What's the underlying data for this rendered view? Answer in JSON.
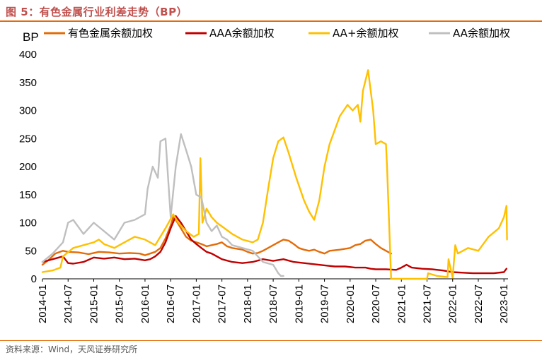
{
  "title": "图 5：有色金属行业利差走势（BP）",
  "source": "资料来源：Wind，天风证券研究所",
  "chart_data": {
    "type": "line",
    "title": "有色金属行业利差走势（BP）",
    "unit": "BP",
    "ylim": [
      0,
      400
    ],
    "yticks": [
      0,
      50,
      100,
      150,
      200,
      250,
      300,
      350,
      400
    ],
    "xlim": [
      2014.0,
      2023.08
    ],
    "xticks": [
      "2014-01",
      "2014-07",
      "2015-01",
      "2015-07",
      "2016-01",
      "2016-07",
      "2017-01",
      "2017-07",
      "2018-01",
      "2018-07",
      "2019-01",
      "2019-07",
      "2020-01",
      "2020-07",
      "2021-01",
      "2021-07",
      "2022-01",
      "2022-07",
      "2023-01"
    ],
    "legend_position": "top",
    "series": [
      {
        "name": "有色金属余额加权",
        "color": "#e36c09",
        "x": [
          2014.0,
          2014.1,
          2014.25,
          2014.4,
          2014.5,
          2014.7,
          2014.9,
          2015.1,
          2015.3,
          2015.5,
          2015.7,
          2015.9,
          2016.0,
          2016.1,
          2016.2,
          2016.3,
          2016.4,
          2016.5,
          2016.55,
          2016.6,
          2016.7,
          2016.8,
          2016.9,
          2017.0,
          2017.1,
          2017.2,
          2017.3,
          2017.4,
          2017.5,
          2017.6,
          2017.7,
          2017.9,
          2018.0,
          2018.1,
          2018.2,
          2018.3,
          2018.4,
          2018.5,
          2018.6,
          2018.7,
          2018.8,
          2018.9,
          2019.0,
          2019.1,
          2019.2,
          2019.3,
          2019.4,
          2019.5,
          2019.6,
          2019.8,
          2020.0,
          2020.1,
          2020.2,
          2020.3,
          2020.4,
          2020.5,
          2020.6,
          2020.7,
          2020.8
        ],
        "y": [
          25,
          32,
          45,
          50,
          48,
          47,
          44,
          48,
          47,
          45,
          46,
          45,
          42,
          45,
          48,
          55,
          72,
          95,
          110,
          105,
          90,
          75,
          68,
          65,
          62,
          58,
          60,
          62,
          65,
          58,
          55,
          52,
          48,
          45,
          46,
          50,
          55,
          60,
          65,
          70,
          68,
          62,
          55,
          52,
          50,
          52,
          48,
          45,
          50,
          52,
          55,
          60,
          62,
          68,
          70,
          62,
          55,
          50,
          45
        ]
      },
      {
        "name": "AAA余额加权",
        "color": "#c00000",
        "x": [
          2014.0,
          2014.2,
          2014.4,
          2014.5,
          2014.6,
          2014.8,
          2015.0,
          2015.2,
          2015.4,
          2015.6,
          2015.8,
          2016.0,
          2016.1,
          2016.2,
          2016.3,
          2016.4,
          2016.5,
          2016.6,
          2016.7,
          2016.8,
          2016.9,
          2017.0,
          2017.1,
          2017.2,
          2017.3,
          2017.4,
          2017.5,
          2017.7,
          2017.9,
          2018.1,
          2018.3,
          2018.5,
          2018.7,
          2018.9,
          2019.1,
          2019.3,
          2019.5,
          2019.7,
          2019.9,
          2020.1,
          2020.3,
          2020.4,
          2020.5,
          2020.7,
          2020.9,
          2021.0,
          2021.1,
          2021.2,
          2021.4,
          2021.6,
          2021.8,
          2022.0,
          2022.2,
          2022.4,
          2022.6,
          2022.8,
          2023.0,
          2023.05
        ],
        "y": [
          30,
          35,
          40,
          28,
          27,
          30,
          38,
          36,
          38,
          35,
          36,
          33,
          35,
          40,
          48,
          65,
          90,
          112,
          100,
          85,
          70,
          62,
          55,
          48,
          45,
          40,
          35,
          30,
          28,
          30,
          35,
          32,
          35,
          30,
          28,
          26,
          24,
          22,
          22,
          20,
          20,
          18,
          17,
          17,
          16,
          20,
          25,
          20,
          18,
          17,
          15,
          12,
          11,
          10,
          10,
          10,
          12,
          18
        ]
      },
      {
        "name": "AA+余额加权",
        "color": "#ffc000",
        "x": [
          2014.0,
          2014.2,
          2014.35,
          2014.4,
          2014.6,
          2014.8,
          2015.0,
          2015.1,
          2015.2,
          2015.4,
          2015.6,
          2015.8,
          2016.0,
          2016.2,
          2016.4,
          2016.55,
          2016.65,
          2016.8,
          2016.95,
          2017.05,
          2017.08,
          2017.12,
          2017.2,
          2017.3,
          2017.4,
          2017.55,
          2017.7,
          2017.9,
          2018.1,
          2018.2,
          2018.3,
          2018.4,
          2018.5,
          2018.6,
          2018.7,
          2018.8,
          2018.95,
          2019.1,
          2019.2,
          2019.3,
          2019.4,
          2019.5,
          2019.6,
          2019.8,
          2019.95,
          2020.05,
          2020.15,
          2020.2,
          2020.25,
          2020.35,
          2020.45,
          2020.5,
          2020.6,
          2020.7,
          2020.72,
          2020.8,
          2021.0,
          2021.3,
          2021.5,
          2021.52,
          2021.7,
          2021.9,
          2021.92,
          2022.0,
          2022.05,
          2022.1,
          2022.3,
          2022.5,
          2022.7,
          2022.9,
          2023.0,
          2023.05,
          2023.06
        ],
        "y": [
          12,
          15,
          20,
          40,
          55,
          60,
          65,
          70,
          62,
          55,
          65,
          75,
          70,
          60,
          90,
          115,
          100,
          85,
          75,
          80,
          215,
          100,
          125,
          110,
          100,
          90,
          80,
          70,
          65,
          70,
          100,
          160,
          215,
          245,
          252,
          225,
          180,
          140,
          120,
          105,
          140,
          200,
          240,
          290,
          310,
          300,
          310,
          280,
          335,
          372,
          300,
          240,
          245,
          240,
          200,
          0,
          0,
          0,
          0,
          10,
          5,
          3,
          35,
          2,
          60,
          45,
          55,
          50,
          75,
          90,
          110,
          130,
          70
        ]
      },
      {
        "name": "AA余额加权",
        "color": "#bfbfbf",
        "x": [
          2014.0,
          2014.2,
          2014.4,
          2014.5,
          2014.6,
          2014.8,
          2015.0,
          2015.2,
          2015.4,
          2015.6,
          2015.8,
          2016.0,
          2016.05,
          2016.15,
          2016.25,
          2016.3,
          2016.4,
          2016.5,
          2016.6,
          2016.7,
          2016.8,
          2016.9,
          2017.0,
          2017.1,
          2017.2,
          2017.3,
          2017.4,
          2017.5,
          2017.6,
          2017.7,
          2017.9,
          2018.1,
          2018.3,
          2018.5,
          2018.6,
          2018.65,
          2018.7
        ],
        "y": [
          30,
          45,
          65,
          100,
          105,
          80,
          100,
          85,
          70,
          100,
          105,
          115,
          160,
          200,
          180,
          245,
          250,
          110,
          200,
          258,
          230,
          200,
          150,
          145,
          100,
          85,
          95,
          75,
          70,
          60,
          55,
          50,
          30,
          25,
          10,
          5,
          5
        ]
      }
    ]
  }
}
